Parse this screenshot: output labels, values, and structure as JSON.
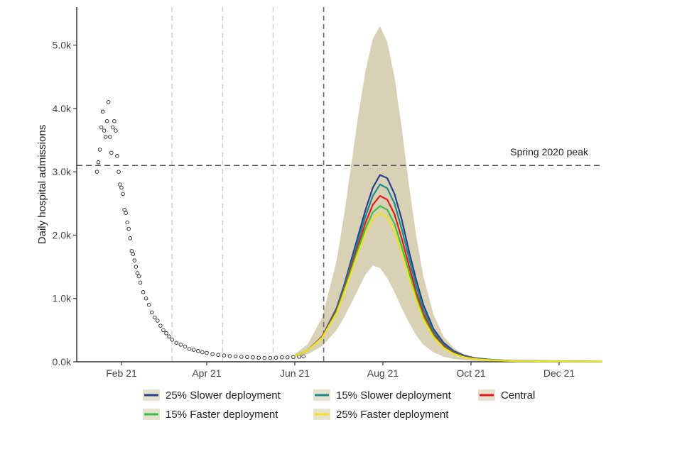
{
  "chart_data": {
    "type": "line",
    "title": "",
    "xlabel": "",
    "ylabel": "Daily hospital admissions",
    "xlim": [
      "2021-01-01",
      "2021-12-31"
    ],
    "ylim": [
      0,
      5600
    ],
    "y_ticks": [
      {
        "value": 0,
        "label": "0.0k"
      },
      {
        "value": 1000,
        "label": "1.0k"
      },
      {
        "value": 2000,
        "label": "2.0k"
      },
      {
        "value": 3000,
        "label": "3.0k"
      },
      {
        "value": 4000,
        "label": "4.0k"
      },
      {
        "value": 5000,
        "label": "5.0k"
      }
    ],
    "x_ticks": [
      {
        "date": "2021-02-01",
        "label": "Feb 21"
      },
      {
        "date": "2021-04-01",
        "label": "Apr 21"
      },
      {
        "date": "2021-06-01",
        "label": "Jun 21"
      },
      {
        "date": "2021-08-01",
        "label": "Aug 21"
      },
      {
        "date": "2021-10-01",
        "label": "Oct 21"
      },
      {
        "date": "2021-12-01",
        "label": "Dec 21"
      }
    ],
    "grid": false,
    "vertical_lines": [
      {
        "date": "2021-03-08",
        "style": "light"
      },
      {
        "date": "2021-04-12",
        "style": "light"
      },
      {
        "date": "2021-05-17",
        "style": "light"
      },
      {
        "date": "2021-06-21",
        "style": "dark"
      }
    ],
    "reference_line": {
      "value": 3100,
      "label": "Spring 2020 peak"
    },
    "observed": {
      "x": [
        "2021-01-15",
        "2021-01-16",
        "2021-01-17",
        "2021-01-18",
        "2021-01-19",
        "2021-01-20",
        "2021-01-21",
        "2021-01-22",
        "2021-01-23",
        "2021-01-24",
        "2021-01-25",
        "2021-01-26",
        "2021-01-27",
        "2021-01-28",
        "2021-01-29",
        "2021-01-30",
        "2021-01-31",
        "2021-02-01",
        "2021-02-02",
        "2021-02-03",
        "2021-02-04",
        "2021-02-05",
        "2021-02-06",
        "2021-02-07",
        "2021-02-08",
        "2021-02-09",
        "2021-02-10",
        "2021-02-11",
        "2021-02-12",
        "2021-02-13",
        "2021-02-14",
        "2021-02-16",
        "2021-02-18",
        "2021-02-20",
        "2021-02-22",
        "2021-02-24",
        "2021-02-26",
        "2021-02-28",
        "2021-03-02",
        "2021-03-04",
        "2021-03-06",
        "2021-03-08",
        "2021-03-11",
        "2021-03-14",
        "2021-03-17",
        "2021-03-20",
        "2021-03-23",
        "2021-03-26",
        "2021-03-29",
        "2021-04-01",
        "2021-04-05",
        "2021-04-09",
        "2021-04-13",
        "2021-04-17",
        "2021-04-21",
        "2021-04-25",
        "2021-04-29",
        "2021-05-03",
        "2021-05-07",
        "2021-05-11",
        "2021-05-15",
        "2021-05-19",
        "2021-05-23",
        "2021-05-27",
        "2021-05-31",
        "2021-06-04",
        "2021-06-07"
      ],
      "y": [
        3000,
        3150,
        3350,
        3700,
        3950,
        3650,
        3550,
        3800,
        4100,
        3550,
        3300,
        3700,
        3800,
        3650,
        3250,
        3000,
        2800,
        2750,
        2650,
        2400,
        2350,
        2200,
        2100,
        1950,
        1750,
        1700,
        1600,
        1500,
        1400,
        1350,
        1250,
        1100,
        1000,
        900,
        780,
        700,
        650,
        570,
        500,
        450,
        400,
        350,
        300,
        270,
        240,
        200,
        190,
        170,
        150,
        140,
        120,
        110,
        100,
        90,
        85,
        80,
        75,
        70,
        65,
        60,
        60,
        65,
        70,
        70,
        75,
        80,
        85
      ]
    },
    "series": [
      {
        "name": "25% Slower deployment",
        "color": "#24408e",
        "x": [
          "2021-06-01",
          "2021-06-10",
          "2021-06-20",
          "2021-06-30",
          "2021-07-05",
          "2021-07-10",
          "2021-07-15",
          "2021-07-20",
          "2021-07-25",
          "2021-07-30",
          "2021-08-04",
          "2021-08-09",
          "2021-08-14",
          "2021-08-19",
          "2021-08-24",
          "2021-08-29",
          "2021-09-05",
          "2021-09-12",
          "2021-09-19",
          "2021-09-26",
          "2021-10-03",
          "2021-10-17",
          "2021-11-01",
          "2021-12-31"
        ],
        "y": [
          90,
          180,
          400,
          850,
          1200,
          1600,
          2000,
          2400,
          2750,
          2950,
          2900,
          2650,
          2250,
          1750,
          1300,
          900,
          520,
          300,
          170,
          100,
          60,
          30,
          15,
          5
        ]
      },
      {
        "name": "15% Slower deployment",
        "color": "#1b8a8a",
        "x": [
          "2021-06-01",
          "2021-06-10",
          "2021-06-20",
          "2021-06-30",
          "2021-07-05",
          "2021-07-10",
          "2021-07-15",
          "2021-07-20",
          "2021-07-25",
          "2021-07-30",
          "2021-08-04",
          "2021-08-09",
          "2021-08-14",
          "2021-08-19",
          "2021-08-24",
          "2021-08-29",
          "2021-09-05",
          "2021-09-12",
          "2021-09-19",
          "2021-09-26",
          "2021-10-03",
          "2021-10-17",
          "2021-11-01",
          "2021-12-31"
        ],
        "y": [
          90,
          180,
          400,
          830,
          1170,
          1550,
          1930,
          2300,
          2620,
          2800,
          2740,
          2500,
          2100,
          1640,
          1200,
          830,
          480,
          270,
          155,
          90,
          55,
          28,
          14,
          5
        ]
      },
      {
        "name": "Central",
        "color": "#e31a1c",
        "x": [
          "2021-06-01",
          "2021-06-10",
          "2021-06-20",
          "2021-06-30",
          "2021-07-05",
          "2021-07-10",
          "2021-07-15",
          "2021-07-20",
          "2021-07-25",
          "2021-07-30",
          "2021-08-04",
          "2021-08-09",
          "2021-08-14",
          "2021-08-19",
          "2021-08-24",
          "2021-08-29",
          "2021-09-05",
          "2021-09-12",
          "2021-09-19",
          "2021-09-26",
          "2021-10-03",
          "2021-10-17",
          "2021-11-01",
          "2021-12-31"
        ],
        "y": [
          90,
          180,
          400,
          810,
          1140,
          1500,
          1850,
          2200,
          2480,
          2620,
          2560,
          2330,
          1950,
          1520,
          1100,
          760,
          440,
          250,
          140,
          82,
          50,
          25,
          12,
          5
        ]
      },
      {
        "name": "15% Faster deployment",
        "color": "#3cbf4a",
        "x": [
          "2021-06-01",
          "2021-06-10",
          "2021-06-20",
          "2021-06-30",
          "2021-07-05",
          "2021-07-10",
          "2021-07-15",
          "2021-07-20",
          "2021-07-25",
          "2021-07-30",
          "2021-08-04",
          "2021-08-09",
          "2021-08-14",
          "2021-08-19",
          "2021-08-24",
          "2021-08-29",
          "2021-09-05",
          "2021-09-12",
          "2021-09-19",
          "2021-09-26",
          "2021-10-03",
          "2021-10-17",
          "2021-11-01",
          "2021-12-31"
        ],
        "y": [
          90,
          180,
          390,
          790,
          1110,
          1450,
          1790,
          2110,
          2360,
          2460,
          2400,
          2180,
          1820,
          1410,
          1030,
          710,
          410,
          230,
          130,
          76,
          46,
          23,
          11,
          5
        ]
      },
      {
        "name": "25% Faster deployment",
        "color": "#f2e21c",
        "x": [
          "2021-06-01",
          "2021-06-10",
          "2021-06-20",
          "2021-06-30",
          "2021-07-05",
          "2021-07-10",
          "2021-07-15",
          "2021-07-20",
          "2021-07-25",
          "2021-07-30",
          "2021-08-04",
          "2021-08-09",
          "2021-08-14",
          "2021-08-19",
          "2021-08-24",
          "2021-08-29",
          "2021-09-05",
          "2021-09-12",
          "2021-09-19",
          "2021-09-26",
          "2021-10-03",
          "2021-10-17",
          "2021-11-01",
          "2021-12-31"
        ],
        "y": [
          90,
          180,
          380,
          770,
          1080,
          1400,
          1730,
          2030,
          2260,
          2350,
          2280,
          2070,
          1730,
          1340,
          980,
          670,
          390,
          220,
          125,
          72,
          44,
          22,
          10,
          5
        ]
      }
    ],
    "uncertainty_band": {
      "color": "#b8ac78",
      "x": [
        "2021-06-01",
        "2021-06-10",
        "2021-06-20",
        "2021-06-30",
        "2021-07-05",
        "2021-07-10",
        "2021-07-15",
        "2021-07-20",
        "2021-07-25",
        "2021-07-30",
        "2021-08-04",
        "2021-08-09",
        "2021-08-14",
        "2021-08-19",
        "2021-08-24",
        "2021-08-29",
        "2021-09-05",
        "2021-09-12",
        "2021-09-19",
        "2021-09-26",
        "2021-10-03",
        "2021-10-17",
        "2021-11-01",
        "2021-12-31"
      ],
      "lower": [
        70,
        120,
        250,
        500,
        700,
        920,
        1150,
        1380,
        1520,
        1480,
        1320,
        1100,
        850,
        620,
        420,
        270,
        150,
        80,
        45,
        25,
        15,
        8,
        4,
        2
      ],
      "upper": [
        120,
        280,
        700,
        1600,
        2300,
        3100,
        3900,
        4600,
        5100,
        5300,
        5050,
        4500,
        3700,
        2800,
        2000,
        1350,
        750,
        400,
        220,
        120,
        70,
        35,
        18,
        8
      ]
    },
    "legend": {
      "position": "bottom"
    }
  }
}
